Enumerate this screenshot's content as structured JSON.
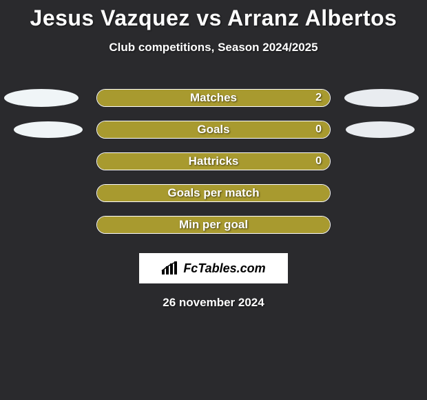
{
  "title": {
    "player1": "Jesus Vazquez",
    "vs": "vs",
    "player2": "Arranz Albertos"
  },
  "subtitle": "Club competitions, Season 2024/2025",
  "date": "26 november 2024",
  "logo_text": "FcTables.com",
  "colors": {
    "background": "#2a2a2d",
    "title_color": "#ffffff",
    "bar_fill": "#a89a2f",
    "bar_border": "#ffffff",
    "player1_accent": "#f0f5f7",
    "player2_accent": "#e9ecf0"
  },
  "ellipse_style": {
    "width_large": 108,
    "height_large": 26,
    "width_small": 100,
    "height_small": 24
  },
  "stats": [
    {
      "label": "Matches",
      "value_text": "2",
      "fill_pct": 100,
      "left_ellipse": true,
      "left_ellipse_size": "large",
      "right_ellipse": true,
      "right_ellipse_size": "large"
    },
    {
      "label": "Goals",
      "value_text": "0",
      "fill_pct": 100,
      "left_ellipse": true,
      "left_ellipse_size": "small",
      "right_ellipse": true,
      "right_ellipse_size": "small"
    },
    {
      "label": "Hattricks",
      "value_text": "0",
      "fill_pct": 100,
      "left_ellipse": false,
      "right_ellipse": false
    },
    {
      "label": "Goals per match",
      "value_text": "",
      "fill_pct": 100,
      "left_ellipse": false,
      "right_ellipse": false
    },
    {
      "label": "Min per goal",
      "value_text": "",
      "fill_pct": 100,
      "left_ellipse": false,
      "right_ellipse": false
    }
  ]
}
